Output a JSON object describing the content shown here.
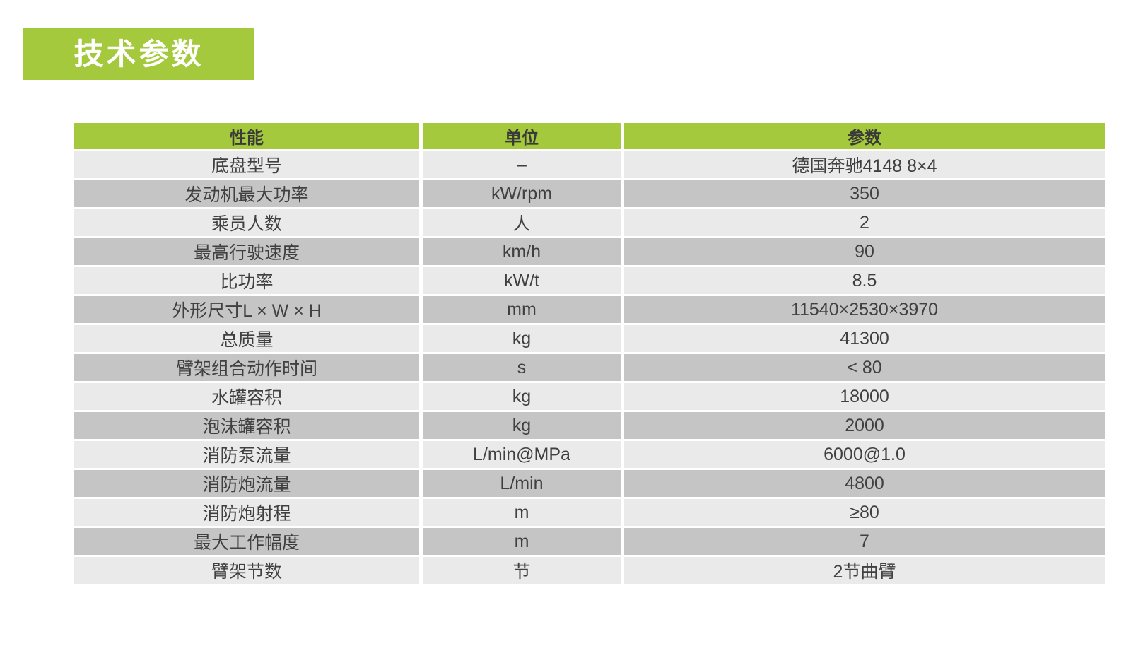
{
  "page_title": {
    "label": "技术参数"
  },
  "colors": {
    "green": "#a5c93c",
    "row_light": "#eaeaeb",
    "row_dark": "#c5c5c5",
    "cell_text": "#404040",
    "title_text": "#ffffff"
  },
  "table": {
    "headers": [
      "性能",
      "单位",
      "参数"
    ],
    "rows": [
      [
        "底盘型号",
        "–",
        "德国奔驰4148 8×4"
      ],
      [
        "发动机最大功率",
        "kW/rpm",
        "350"
      ],
      [
        "乘员人数",
        "人",
        "2"
      ],
      [
        "最高行驶速度",
        "km/h",
        "90"
      ],
      [
        "比功率",
        "kW/t",
        "8.5"
      ],
      [
        "外形尺寸L × W × H",
        "mm",
        "11540×2530×3970"
      ],
      [
        "总质量",
        "kg",
        "41300"
      ],
      [
        "臂架组合动作时间",
        "s",
        "< 80"
      ],
      [
        "水罐容积",
        "kg",
        "18000"
      ],
      [
        "泡沫罐容积",
        "kg",
        "2000"
      ],
      [
        "消防泵流量",
        "L/min@MPa",
        "6000@1.0"
      ],
      [
        "消防炮流量",
        "L/min",
        "4800"
      ],
      [
        "消防炮射程",
        "m",
        "≥80"
      ],
      [
        "最大工作幅度",
        "m",
        "7"
      ],
      [
        "臂架节数",
        "节",
        "2节曲臂"
      ]
    ]
  }
}
